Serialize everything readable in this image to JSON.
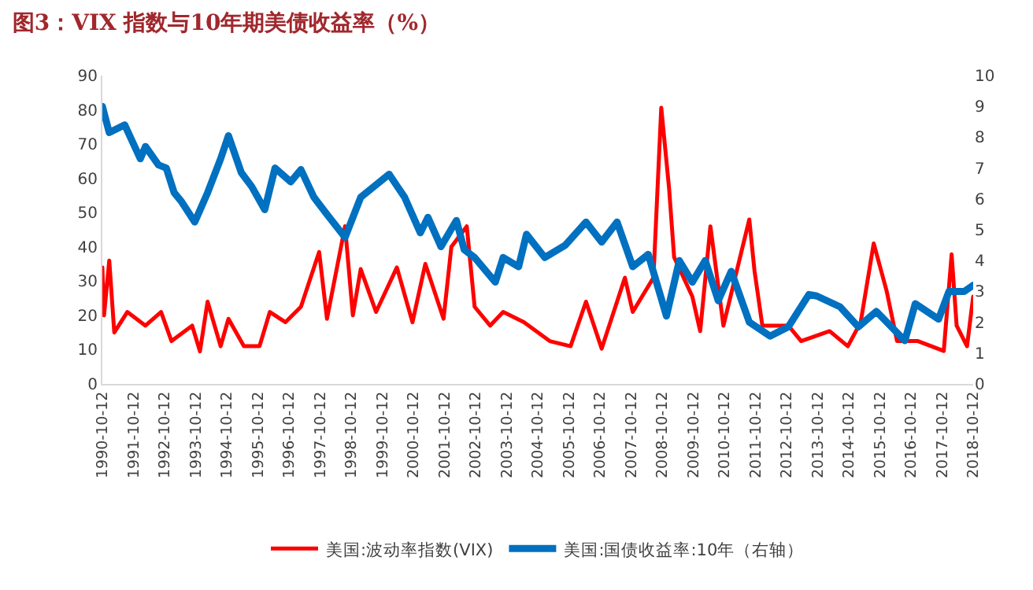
{
  "chart_data": {
    "type": "line",
    "title": "图3：VIX 指数与10年期美债收益率（%）",
    "series": [
      {
        "name": "美国:波动率指数(VIX)",
        "color": "#ff0000",
        "axis": "y",
        "x": [
          "1990-10-12",
          "1990-11",
          "1991-01",
          "1991-03",
          "1991-08",
          "1992-03",
          "1992-09",
          "1993-01",
          "1993-09",
          "1993-12",
          "1994-03",
          "1994-08",
          "1994-11",
          "1995-05",
          "1995-11",
          "1996-03",
          "1996-09",
          "1997-03",
          "1997-10",
          "1998-01",
          "1998-08",
          "1998-11",
          "1999-02",
          "1999-08",
          "2000-04",
          "2000-10",
          "2001-03",
          "2001-10",
          "2002-01",
          "2002-07",
          "2002-10",
          "2003-04",
          "2003-09",
          "2004-05",
          "2005-03",
          "2005-11",
          "2006-05",
          "2006-11",
          "2007-08",
          "2007-11",
          "2008-07",
          "2008-10",
          "2009-01",
          "2009-03",
          "2009-10",
          "2010-01",
          "2010-05",
          "2010-10",
          "2011-08",
          "2011-10",
          "2012-01",
          "2012-11",
          "2013-04",
          "2014-03",
          "2014-10",
          "2015-03",
          "2015-08",
          "2016-01",
          "2016-05",
          "2017-01",
          "2017-11",
          "2018-02",
          "2018-04",
          "2018-08",
          "2018-10-12"
        ],
        "values": [
          34,
          20,
          36,
          15,
          21,
          17,
          21,
          12.5,
          17,
          9.5,
          24,
          11,
          19,
          11,
          11,
          21,
          18,
          22.5,
          38.5,
          19,
          46,
          20,
          33.5,
          21,
          34,
          18,
          35,
          19,
          40,
          46,
          22.5,
          17,
          21,
          18,
          12.5,
          11,
          24,
          10.3,
          31,
          21,
          31,
          80.6,
          57,
          37,
          25.5,
          15.4,
          46,
          17,
          48,
          33,
          17,
          17,
          12.5,
          15.4,
          11,
          18,
          41,
          27,
          12.5,
          12.5,
          9.6,
          37.8,
          17,
          11,
          25.5
        ]
      },
      {
        "name": "美国:国债收益率:10年（右轴）",
        "color": "#0070c0",
        "axis": "y2",
        "x": [
          "1990-10-12",
          "1991-01",
          "1991-07",
          "1992-01",
          "1992-03",
          "1992-08",
          "1992-11",
          "1993-02",
          "1993-05",
          "1993-10",
          "1994-03",
          "1994-08",
          "1994-11",
          "1995-04",
          "1995-08",
          "1996-01",
          "1996-05",
          "1996-11",
          "1997-03",
          "1997-08",
          "1998-01",
          "1998-08",
          "1999-02",
          "2000-01",
          "2000-07",
          "2001-01",
          "2001-04",
          "2001-09",
          "2002-03",
          "2002-06",
          "2002-10",
          "2003-06",
          "2003-09",
          "2004-03",
          "2004-06",
          "2005-01",
          "2005-09",
          "2006-05",
          "2006-11",
          "2007-05",
          "2007-11",
          "2008-05",
          "2008-12",
          "2009-05",
          "2009-10",
          "2010-03",
          "2010-08",
          "2011-01",
          "2011-08",
          "2012-04",
          "2012-11",
          "2013-07",
          "2013-10",
          "2014-07",
          "2015-02",
          "2015-09",
          "2016-08",
          "2016-12",
          "2017-09",
          "2018-01",
          "2018-07",
          "2018-10-12"
        ],
        "values": [
          9.0,
          8.15,
          8.4,
          7.3,
          7.7,
          7.1,
          7.0,
          6.2,
          5.9,
          5.25,
          6.2,
          7.3,
          8.05,
          6.85,
          6.4,
          5.65,
          7.0,
          6.55,
          6.95,
          6.05,
          5.5,
          4.75,
          6.05,
          6.8,
          6.05,
          4.9,
          5.4,
          4.45,
          5.3,
          4.35,
          4.1,
          3.3,
          4.1,
          3.8,
          4.85,
          4.1,
          4.5,
          5.25,
          4.6,
          5.25,
          3.8,
          4.2,
          2.2,
          4.0,
          3.3,
          4.0,
          2.7,
          3.65,
          2.0,
          1.55,
          1.85,
          2.9,
          2.85,
          2.5,
          1.85,
          2.35,
          1.4,
          2.6,
          2.1,
          3.0,
          3.0,
          3.2
        ]
      }
    ],
    "xlim": [
      "1990-10-12",
      "2018-10-12"
    ],
    "xticks": [
      "1990-10-12",
      "1991-10-12",
      "1992-10-12",
      "1993-10-12",
      "1994-10-12",
      "1995-10-12",
      "1996-10-12",
      "1997-10-12",
      "1998-10-12",
      "1999-10-12",
      "2000-10-12",
      "2001-10-12",
      "2002-10-12",
      "2003-10-12",
      "2004-10-12",
      "2005-10-12",
      "2006-10-12",
      "2007-10-12",
      "2008-10-12",
      "2009-10-12",
      "2010-10-12",
      "2011-10-12",
      "2012-10-12",
      "2013-10-12",
      "2014-10-12",
      "2015-10-12",
      "2016-10-12",
      "2017-10-12",
      "2018-10-12"
    ],
    "ylim": [
      0,
      90
    ],
    "yticks": [
      0,
      10,
      20,
      30,
      40,
      50,
      60,
      70,
      80,
      90
    ],
    "y2lim": [
      0,
      10
    ],
    "y2ticks": [
      0,
      1,
      2,
      3,
      4,
      5,
      6,
      7,
      8,
      9,
      10
    ],
    "grid": false,
    "legend": "bottom",
    "marker": "none",
    "line_style": "solid"
  }
}
